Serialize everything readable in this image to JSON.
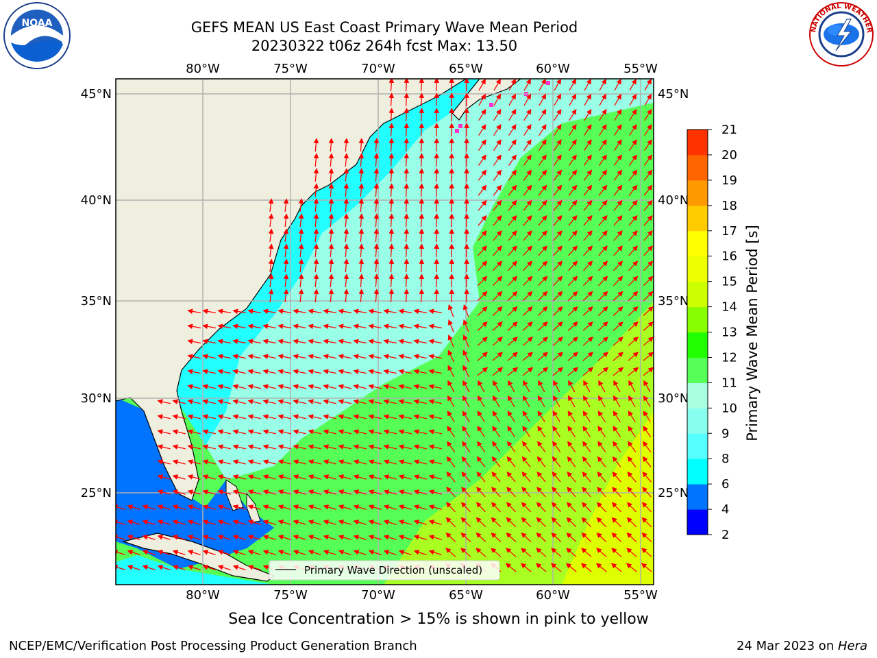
{
  "title_line1": "GEFS MEAN US East Coast Primary Wave Mean Period",
  "title_line2": "20230322 t06z 264h fcst   Max: 13.50",
  "sea_ice_note": "Sea Ice Concentration > 15% is shown in pink to yellow",
  "footer_left": "NCEP/EMC/Verification Post Processing Product Generation Branch",
  "footer_date": "24 Mar 2023 on ",
  "footer_host": "Hera",
  "logo_left_text": "NOAA",
  "logo_right_text": "NATIONAL WEATHER SERVICE",
  "legend_label": "Primary Wave Direction (unscaled)",
  "colorbar": {
    "label": "Primary Wave Mean Period [s]",
    "ticks": [
      "2",
      "4",
      "6",
      "8",
      "9",
      "10",
      "11",
      "12",
      "13",
      "14",
      "15",
      "16",
      "17",
      "18",
      "19",
      "20",
      "21"
    ],
    "colors": [
      "#0000ff",
      "#0073ff",
      "#00ffff",
      "#55ffff",
      "#88ffee",
      "#a8ffe0",
      "#55ff55",
      "#22ff00",
      "#88ff00",
      "#ccff00",
      "#eeff00",
      "#ffff00",
      "#ffcc00",
      "#ff9900",
      "#ff6600",
      "#ff3300",
      "#ff0000"
    ]
  },
  "axes": {
    "lon_labels": [
      "80°W",
      "75°W",
      "70°W",
      "65°W",
      "60°W",
      "55°W"
    ],
    "lat_labels": [
      "45°N",
      "40°N",
      "35°N",
      "30°N",
      "25°N"
    ]
  },
  "colors": {
    "land": "#efefdf",
    "arrow": "#ff0000",
    "grid": "#b0b0b0"
  }
}
